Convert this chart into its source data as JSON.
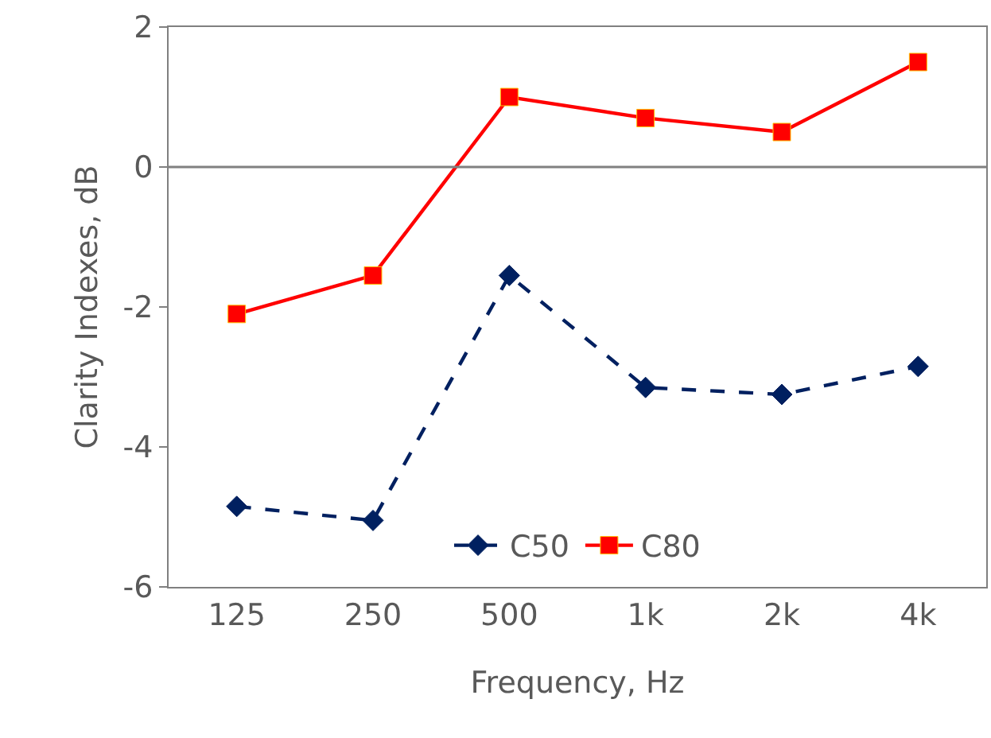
{
  "chart_data": {
    "type": "line",
    "xlabel": "Frequency, Hz",
    "ylabel": "Clarity Indexes, dB",
    "categories": [
      "125",
      "250",
      "500",
      "1k",
      "2k",
      "4k"
    ],
    "series": [
      {
        "name": "C50",
        "color": "#002060",
        "marker": "diamond",
        "line_style": "dashed",
        "values": [
          -4.85,
          -5.05,
          -1.55,
          -3.15,
          -3.25,
          -2.85
        ]
      },
      {
        "name": "C80",
        "color": "#ff0000",
        "marker": "square",
        "line_style": "solid",
        "values": [
          -2.1,
          -1.55,
          1.0,
          0.7,
          0.5,
          1.5
        ]
      }
    ],
    "ylim": [
      -6,
      2
    ],
    "yticks": [
      -6,
      -4,
      -2,
      0,
      2
    ],
    "legend": "bottom",
    "ref_lines": [
      {
        "axis": "y",
        "value": 0,
        "color": "#808080"
      }
    ]
  }
}
